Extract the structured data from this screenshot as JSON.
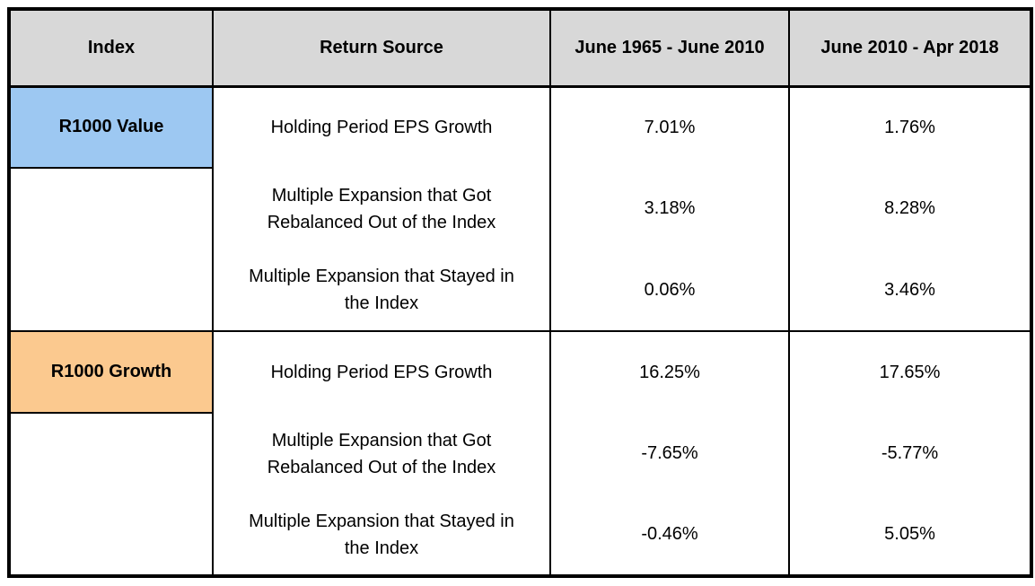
{
  "chart_data": {
    "type": "table",
    "columns": [
      "Index",
      "Return Source",
      "June 1965 - June 2010",
      "June 2010 - Apr 2018"
    ],
    "rows": [
      [
        "R1000 Value",
        "Holding Period EPS Growth",
        "7.01%",
        "1.76%"
      ],
      [
        "",
        "Multiple Expansion that Got Rebalanced Out of the Index",
        "3.18%",
        "8.28%"
      ],
      [
        "",
        "Multiple Expansion that Stayed in the Index",
        "0.06%",
        "3.46%"
      ],
      [
        "R1000 Growth",
        "Holding Period EPS Growth",
        "16.25%",
        "17.65%"
      ],
      [
        "",
        "Multiple Expansion that Got Rebalanced Out of the Index",
        "-7.65%",
        "-5.77%"
      ],
      [
        "",
        "Multiple Expansion that Stayed in the Index",
        "-0.46%",
        "5.05%"
      ]
    ],
    "sections": [
      {
        "index_label": "R1000 Value",
        "row_span": 3,
        "highlight_color": "#9dc8f2"
      },
      {
        "index_label": "R1000 Growth",
        "row_span": 3,
        "highlight_color": "#fbc98f"
      }
    ],
    "title": "",
    "legend": "none",
    "grid": "partial-black-borders"
  },
  "colors": {
    "header_bg": "#d8d8d8",
    "value_index_bg": "#9dc8f2",
    "growth_index_bg": "#fbc98f",
    "border": "#000000",
    "text": "#000000",
    "page_bg": "#ffffff"
  }
}
